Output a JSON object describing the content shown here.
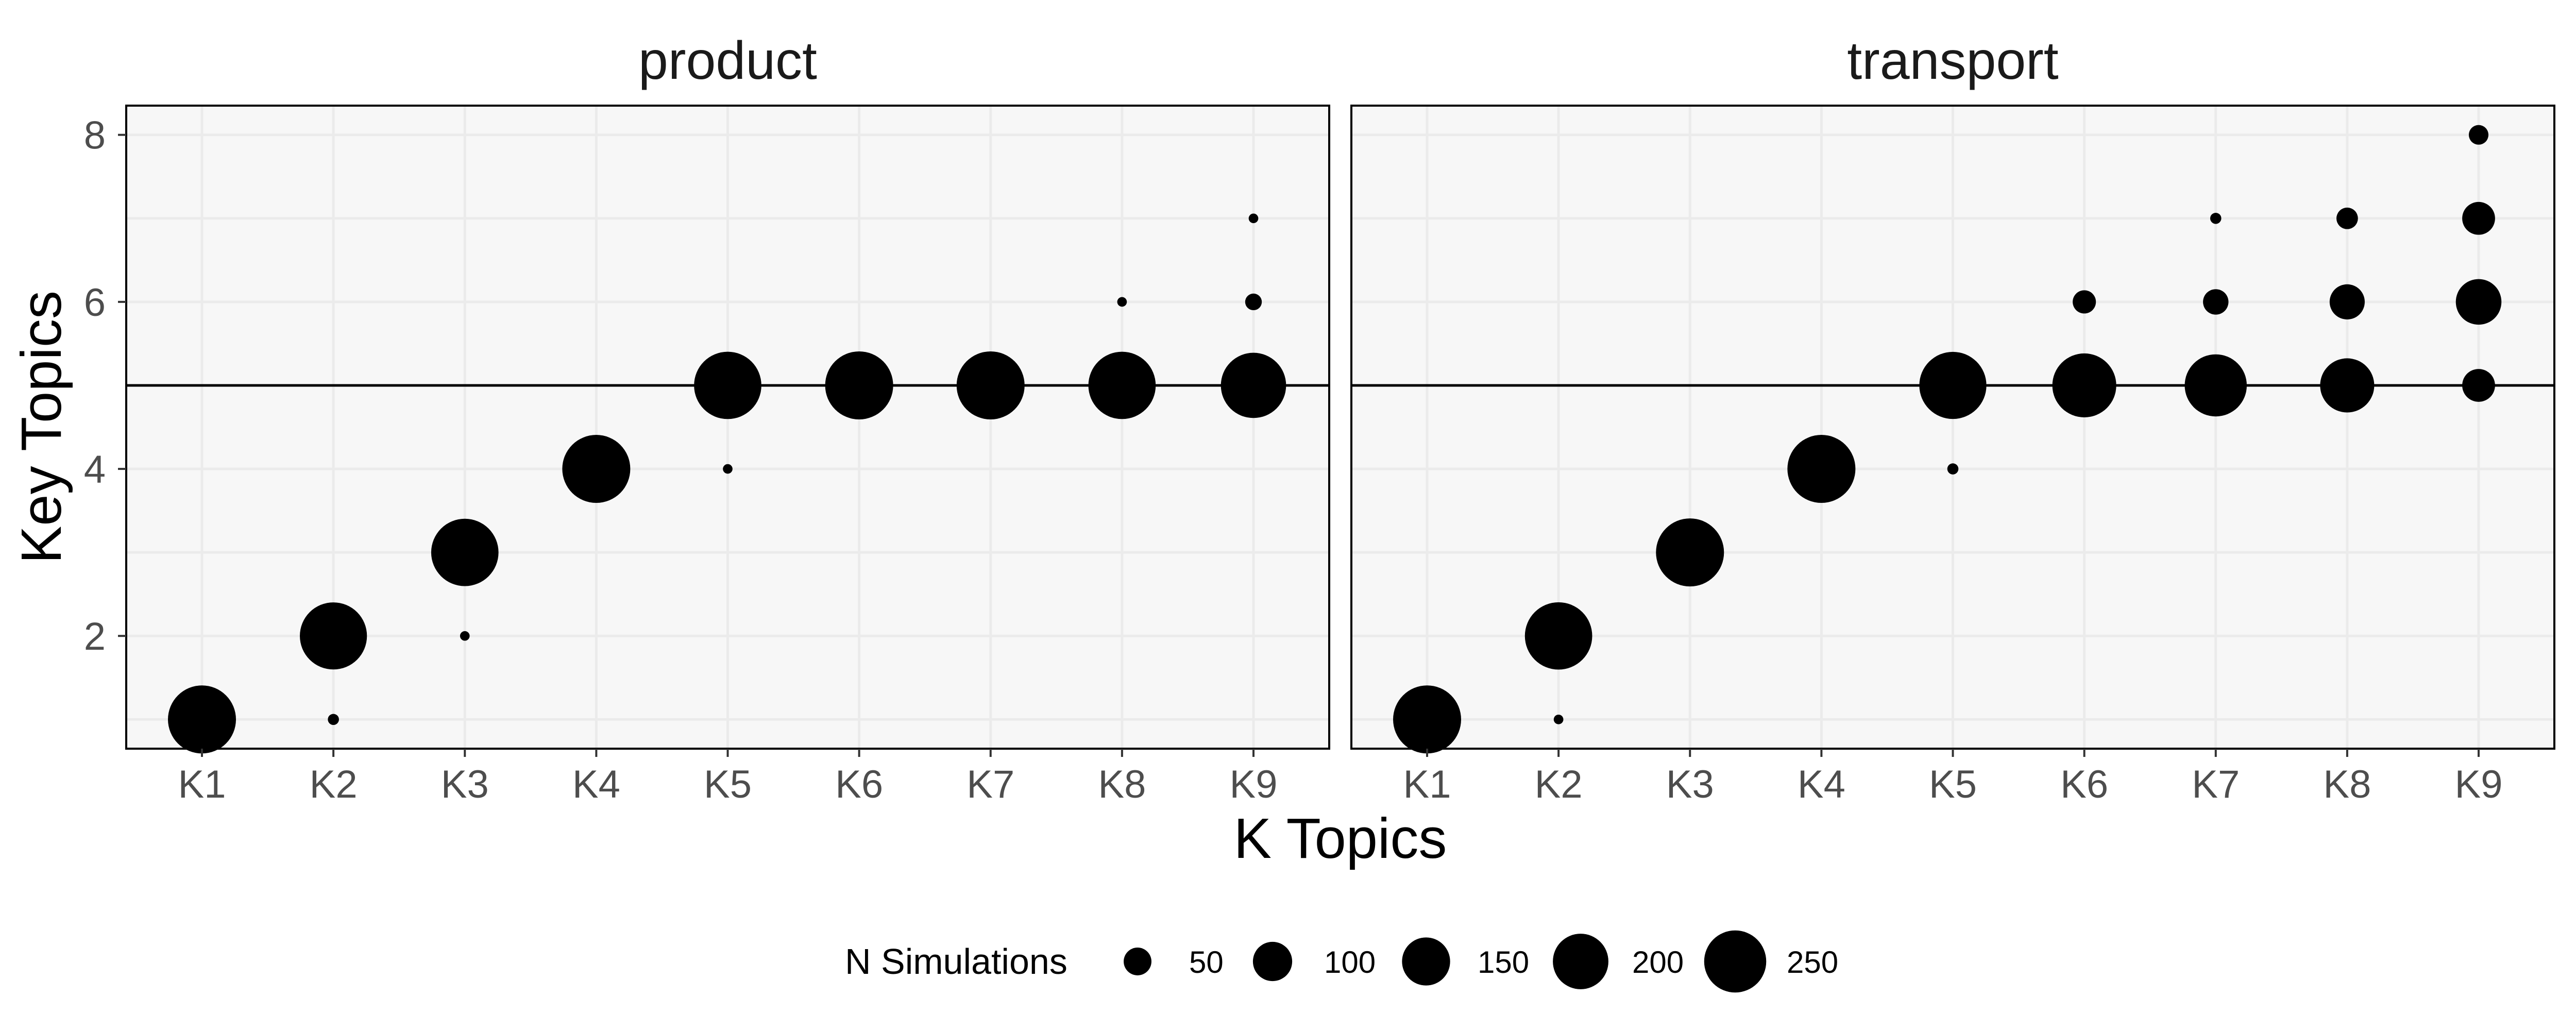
{
  "chart_data": {
    "type": "scatter",
    "xlabel": "K Topics",
    "ylabel": "Key Topics",
    "x_categories": [
      "K1",
      "K2",
      "K3",
      "K4",
      "K5",
      "K6",
      "K7",
      "K8",
      "K9"
    ],
    "y_ticks": [
      2,
      4,
      6,
      8
    ],
    "ylim": [
      0.65,
      8.35
    ],
    "reference_line_y": 5,
    "grid": true,
    "size_legend": {
      "title": "N Simulations",
      "placement": "bottom",
      "values": [
        50,
        100,
        150,
        200,
        250
      ],
      "labels": [
        "50",
        "100",
        "150",
        "200",
        "250"
      ]
    },
    "panels": [
      {
        "title": "product",
        "points": [
          {
            "x": "K1",
            "y": 1,
            "n": 300
          },
          {
            "x": "K2",
            "y": 1,
            "n": 8
          },
          {
            "x": "K2",
            "y": 2,
            "n": 292
          },
          {
            "x": "K3",
            "y": 2,
            "n": 6
          },
          {
            "x": "K3",
            "y": 3,
            "n": 294
          },
          {
            "x": "K4",
            "y": 4,
            "n": 300
          },
          {
            "x": "K5",
            "y": 4,
            "n": 6
          },
          {
            "x": "K5",
            "y": 5,
            "n": 294
          },
          {
            "x": "K6",
            "y": 5,
            "n": 300
          },
          {
            "x": "K7",
            "y": 5,
            "n": 300
          },
          {
            "x": "K8",
            "y": 5,
            "n": 294
          },
          {
            "x": "K8",
            "y": 6,
            "n": 6
          },
          {
            "x": "K9",
            "y": 5,
            "n": 276
          },
          {
            "x": "K9",
            "y": 6,
            "n": 18
          },
          {
            "x": "K9",
            "y": 7,
            "n": 6
          }
        ]
      },
      {
        "title": "transport",
        "points": [
          {
            "x": "K1",
            "y": 1,
            "n": 300
          },
          {
            "x": "K2",
            "y": 1,
            "n": 6
          },
          {
            "x": "K2",
            "y": 2,
            "n": 294
          },
          {
            "x": "K3",
            "y": 3,
            "n": 300
          },
          {
            "x": "K4",
            "y": 4,
            "n": 300
          },
          {
            "x": "K5",
            "y": 4,
            "n": 8
          },
          {
            "x": "K5",
            "y": 5,
            "n": 292
          },
          {
            "x": "K6",
            "y": 5,
            "n": 265
          },
          {
            "x": "K6",
            "y": 6,
            "n": 35
          },
          {
            "x": "K7",
            "y": 5,
            "n": 250
          },
          {
            "x": "K7",
            "y": 6,
            "n": 42
          },
          {
            "x": "K7",
            "y": 7,
            "n": 8
          },
          {
            "x": "K8",
            "y": 5,
            "n": 190
          },
          {
            "x": "K8",
            "y": 6,
            "n": 80
          },
          {
            "x": "K8",
            "y": 7,
            "n": 30
          },
          {
            "x": "K9",
            "y": 5,
            "n": 70
          },
          {
            "x": "K9",
            "y": 6,
            "n": 135
          },
          {
            "x": "K9",
            "y": 7,
            "n": 70
          },
          {
            "x": "K9",
            "y": 8,
            "n": 25
          }
        ]
      }
    ]
  }
}
